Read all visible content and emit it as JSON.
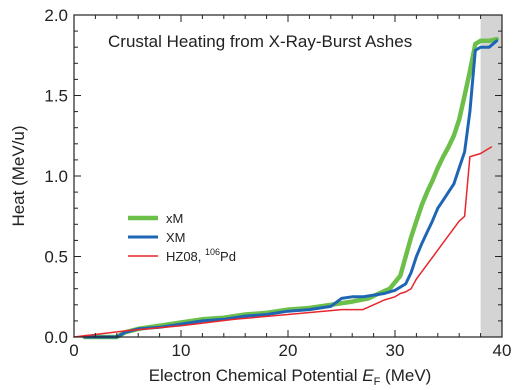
{
  "chart_data": {
    "type": "line",
    "title": "Crustal Heating from X-Ray-Burst Ashes",
    "xlabel": {
      "main": "Electron Chemical Potential ",
      "sym": "E",
      "sub": "F",
      "unit": " (MeV)"
    },
    "ylabel": "Heat (MeV/u)",
    "xlim": [
      0,
      40
    ],
    "ylim": [
      0,
      2.0
    ],
    "xticks": [
      0,
      10,
      20,
      30,
      40
    ],
    "xtick_labels": [
      "0",
      "10",
      "20",
      "30",
      "40"
    ],
    "yticks": [
      0.0,
      0.5,
      1.0,
      1.5,
      2.0
    ],
    "ytick_labels": [
      "0.0",
      "0.5",
      "1.0",
      "1.5",
      "2.0"
    ],
    "shaded_region": {
      "x": [
        38.0,
        40.0
      ],
      "color": "#d4d4d4"
    },
    "grid": false,
    "legend_position": "center-left",
    "series": [
      {
        "name": "xM",
        "color": "#6cc04a",
        "x": [
          1,
          4,
          4.8,
          6,
          8,
          10,
          12,
          14,
          16,
          18,
          20,
          22,
          24,
          26,
          27.5,
          28.5,
          29.5,
          30.5,
          31,
          31.5,
          32,
          32.5,
          33,
          33.5,
          34,
          34.5,
          35,
          35.5,
          36,
          36.5,
          37,
          37.5,
          38,
          38.8,
          39.5
        ],
        "y": [
          0.0,
          0.0,
          0.03,
          0.05,
          0.07,
          0.09,
          0.11,
          0.12,
          0.14,
          0.15,
          0.17,
          0.18,
          0.2,
          0.22,
          0.24,
          0.27,
          0.3,
          0.38,
          0.5,
          0.62,
          0.72,
          0.82,
          0.9,
          0.97,
          1.05,
          1.12,
          1.18,
          1.25,
          1.35,
          1.5,
          1.65,
          1.82,
          1.84,
          1.84,
          1.85
        ]
      },
      {
        "name": "XM",
        "color": "#1e66b4",
        "x": [
          1,
          4,
          4.8,
          6,
          8,
          10,
          12,
          14,
          16,
          18,
          20,
          22,
          24,
          25,
          26,
          27,
          28,
          29,
          30,
          31,
          31.5,
          32,
          32.5,
          33,
          33.5,
          34,
          34.5,
          35,
          35.5,
          36,
          36.5,
          37,
          37.5,
          38,
          38.8,
          39.5
        ],
        "y": [
          0.0,
          0.0,
          0.03,
          0.05,
          0.06,
          0.08,
          0.1,
          0.11,
          0.13,
          0.14,
          0.16,
          0.17,
          0.19,
          0.24,
          0.25,
          0.25,
          0.26,
          0.27,
          0.29,
          0.33,
          0.4,
          0.5,
          0.58,
          0.65,
          0.72,
          0.8,
          0.85,
          0.9,
          0.95,
          1.05,
          1.15,
          1.4,
          1.78,
          1.8,
          1.8,
          1.84
        ]
      },
      {
        "name": "HZ08, 106Pd",
        "legend": {
          "pre": "HZ08, ",
          "sup": "106",
          "post": "Pd"
        },
        "color": "#e8262b",
        "x": [
          0,
          5,
          10,
          15,
          20,
          25,
          27,
          28,
          29,
          30,
          30.5,
          31,
          31.5,
          32,
          33,
          34,
          35,
          36,
          36.5,
          37,
          37.5,
          38,
          39
        ],
        "y": [
          0.0,
          0.04,
          0.07,
          0.11,
          0.14,
          0.17,
          0.17,
          0.2,
          0.23,
          0.25,
          0.27,
          0.28,
          0.3,
          0.36,
          0.45,
          0.54,
          0.63,
          0.72,
          0.75,
          1.12,
          1.13,
          1.14,
          1.18
        ]
      }
    ]
  }
}
